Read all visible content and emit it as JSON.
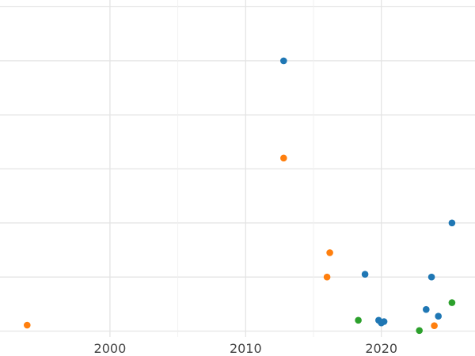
{
  "chart_data": {
    "type": "scatter",
    "title": "",
    "xlabel": "",
    "ylabel": "",
    "xlim": [
      1991.9,
      2026.9
    ],
    "ylim": [
      -0.22,
      12.25
    ],
    "grid": true,
    "x_ticks": [
      2000,
      2010,
      2020
    ],
    "x_tick_labels": [
      "2000",
      "2010",
      "2020"
    ],
    "x_minor_ticks": [
      2005,
      2015
    ],
    "y_gridlines": [
      0,
      2,
      4,
      6,
      8,
      10,
      12
    ],
    "series": [
      {
        "color": "#1f77b4",
        "points": [
          {
            "x": 2012.8,
            "y": 10.0
          },
          {
            "x": 2025.2,
            "y": 4.0
          },
          {
            "x": 2018.8,
            "y": 2.1
          },
          {
            "x": 2023.7,
            "y": 2.0
          },
          {
            "x": 2023.3,
            "y": 0.8
          },
          {
            "x": 2024.2,
            "y": 0.55
          },
          {
            "x": 2019.8,
            "y": 0.4
          },
          {
            "x": 2020.2,
            "y": 0.35
          },
          {
            "x": 2020.0,
            "y": 0.3
          }
        ]
      },
      {
        "color": "#ff7f0e",
        "points": [
          {
            "x": 2012.8,
            "y": 6.4
          },
          {
            "x": 2016.2,
            "y": 2.9
          },
          {
            "x": 2016.0,
            "y": 2.0
          },
          {
            "x": 2023.9,
            "y": 0.2
          },
          {
            "x": 1993.9,
            "y": 0.22
          }
        ]
      },
      {
        "color": "#2ca02c",
        "points": [
          {
            "x": 2025.2,
            "y": 1.05
          },
          {
            "x": 2018.3,
            "y": 0.4
          },
          {
            "x": 2022.8,
            "y": 0.02
          }
        ]
      }
    ]
  }
}
